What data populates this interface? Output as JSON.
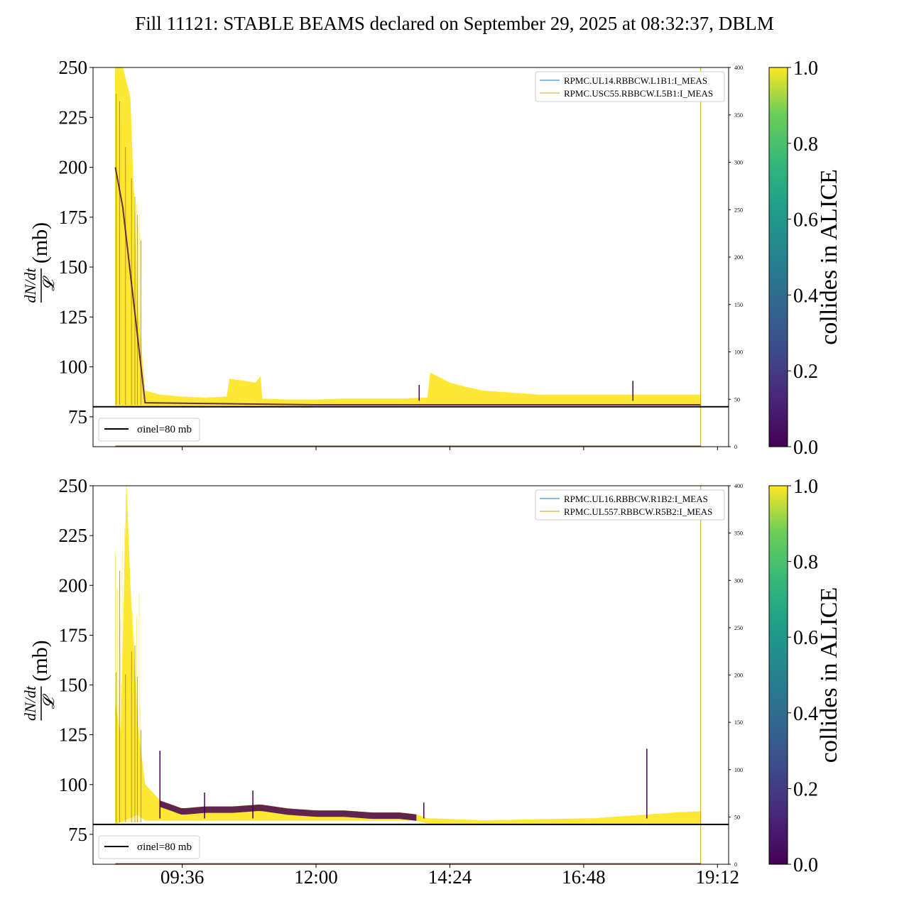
{
  "title": "Fill 11121: STABLE BEAMS declared on September 29, 2025 at 08:32:37, DBLM",
  "chart_data": [
    {
      "type": "scatter",
      "panel": "top",
      "ylabel_num": "dN/dt",
      "ylabel_den": "𝓛",
      "ylabel_unit": "(mb)",
      "ylim": [
        60,
        250
      ],
      "yticks": [
        75,
        100,
        125,
        150,
        175,
        200,
        225,
        250
      ],
      "y2lim": [
        0,
        400
      ],
      "y2ticks": [
        0,
        50,
        100,
        150,
        200,
        250,
        300,
        350,
        400
      ],
      "x_range": [
        "08:00",
        "19:24"
      ],
      "xticks": [],
      "legend": [
        "RPMC.UL14.RBBCW.L1B1:I_MEAS",
        "RPMC.USC55.RBBCW.L5B1:I_MEAS"
      ],
      "reference_line": {
        "y": 80,
        "label": "σinel=80 mb"
      },
      "colorbar": {
        "label": "collides in ALICE",
        "range": [
          0.0,
          1.0
        ],
        "ticks": [
          "0.0",
          "0.2",
          "0.4",
          "0.6",
          "0.8",
          "1.0"
        ]
      },
      "upper_envelope": [
        [
          "08:24",
          250
        ],
        [
          "08:32",
          250
        ],
        [
          "08:40",
          235
        ],
        [
          "08:48",
          130
        ],
        [
          "08:56",
          88
        ],
        [
          "09:12",
          86
        ],
        [
          "09:36",
          85
        ],
        [
          "10:00",
          84.5
        ],
        [
          "10:24",
          85
        ],
        [
          "10:27",
          94
        ],
        [
          "10:55",
          92
        ],
        [
          "11:00",
          95
        ],
        [
          "11:02",
          84
        ],
        [
          "11:30",
          83.5
        ],
        [
          "12:00",
          83.5
        ],
        [
          "12:30",
          84
        ],
        [
          "13:00",
          84
        ],
        [
          "13:30",
          84
        ],
        [
          "14:00",
          84.5
        ],
        [
          "14:03",
          97
        ],
        [
          "14:24",
          92
        ],
        [
          "14:40",
          90
        ],
        [
          "15:00",
          88
        ],
        [
          "16:00",
          86
        ],
        [
          "17:00",
          86
        ],
        [
          "17:30",
          86
        ],
        [
          "18:00",
          86
        ],
        [
          "18:30",
          86
        ],
        [
          "18:54",
          86
        ]
      ],
      "purple_envelope": [
        [
          "08:24",
          200
        ],
        [
          "08:32",
          180
        ],
        [
          "08:48",
          115
        ],
        [
          "08:56",
          82
        ],
        [
          "12:00",
          81
        ],
        [
          "18:54",
          81
        ]
      ],
      "spikes": [
        [
          "13:51",
          91
        ],
        [
          "17:41",
          93
        ]
      ],
      "vertical_marker": "18:54"
    },
    {
      "type": "scatter",
      "panel": "bottom",
      "ylabel_num": "dN/dt",
      "ylabel_den": "𝓛",
      "ylabel_unit": "(mb)",
      "ylim": [
        60,
        250
      ],
      "yticks": [
        75,
        100,
        125,
        150,
        175,
        200,
        225,
        250
      ],
      "y2lim": [
        0,
        400
      ],
      "y2ticks": [
        0,
        50,
        100,
        150,
        200,
        250,
        300,
        350,
        400
      ],
      "x_range": [
        "08:00",
        "19:24"
      ],
      "xticks": [
        "09:36",
        "12:00",
        "14:24",
        "16:48",
        "19:12"
      ],
      "legend": [
        "RPMC.UL16.RBBCW.R1B2:I_MEAS",
        "RPMC.UL557.RBBCW.R5B2:I_MEAS"
      ],
      "reference_line": {
        "y": 80,
        "label": "σinel=80 mb"
      },
      "colorbar": {
        "label": "collides in ALICE",
        "range": [
          0.0,
          1.0
        ],
        "ticks": [
          "0.0",
          "0.2",
          "0.4",
          "0.6",
          "0.8",
          "1.0"
        ]
      },
      "upper_envelope": [
        [
          "08:24",
          140
        ],
        [
          "08:30",
          125
        ],
        [
          "08:36",
          250
        ],
        [
          "08:40",
          200
        ],
        [
          "08:48",
          130
        ],
        [
          "08:56",
          100
        ],
        [
          "09:12",
          92
        ],
        [
          "09:36",
          88
        ],
        [
          "10:00",
          89
        ],
        [
          "10:30",
          89
        ],
        [
          "11:00",
          90
        ],
        [
          "11:30",
          88
        ],
        [
          "12:00",
          87
        ],
        [
          "12:30",
          87
        ],
        [
          "13:00",
          86
        ],
        [
          "13:30",
          86
        ],
        [
          "13:48",
          85
        ],
        [
          "14:00",
          83
        ],
        [
          "15:00",
          82
        ],
        [
          "16:00",
          82.5
        ],
        [
          "17:00",
          83
        ],
        [
          "17:30",
          84
        ],
        [
          "18:00",
          85
        ],
        [
          "18:30",
          86
        ],
        [
          "18:54",
          86.5
        ]
      ],
      "lower_envelope": [
        [
          "08:24",
          80
        ],
        [
          "08:48",
          85
        ],
        [
          "08:56",
          82
        ],
        [
          "09:36",
          82
        ],
        [
          "13:48",
          82
        ],
        [
          "14:00",
          80.5
        ],
        [
          "18:54",
          80.5
        ]
      ],
      "purple_band": [
        [
          "09:12",
          "13:48"
        ]
      ],
      "spikes": [
        [
          "09:12",
          117
        ],
        [
          "10:00",
          96
        ],
        [
          "10:52",
          97
        ],
        [
          "13:56",
          91
        ],
        [
          "17:56",
          118
        ]
      ],
      "vertical_marker": "18:54"
    }
  ]
}
